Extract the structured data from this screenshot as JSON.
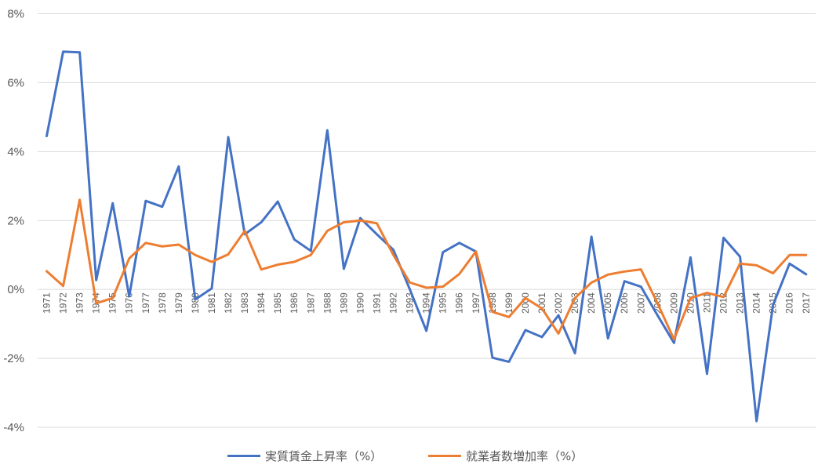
{
  "chart_data": {
    "type": "line",
    "x": [
      "1971",
      "1972",
      "1973",
      "1974",
      "1975",
      "1976",
      "1977",
      "1978",
      "1979",
      "1980",
      "1981",
      "1982",
      "1983",
      "1984",
      "1985",
      "1986",
      "1987",
      "1988",
      "1989",
      "1990",
      "1991",
      "1992",
      "1993",
      "1994",
      "1995",
      "1996",
      "1997",
      "1998",
      "1999",
      "2000",
      "2001",
      "2002",
      "2003",
      "2004",
      "2005",
      "2006",
      "2007",
      "2008",
      "2009",
      "2010",
      "2011",
      "2012",
      "2013",
      "2014",
      "2015",
      "2016",
      "2017"
    ],
    "ylim": [
      -4,
      8
    ],
    "yticks": [
      -4,
      -2,
      0,
      2,
      4,
      6,
      8
    ],
    "ytick_labels": [
      "-4%",
      "-2%",
      "0%",
      "2%",
      "4%",
      "6%",
      "8%"
    ],
    "grid": true,
    "legend_position": "bottom",
    "series": [
      {
        "name": "実質賃金上昇率（%）",
        "color": "#4472c4",
        "values": [
          4.45,
          6.9,
          6.88,
          0.27,
          2.5,
          -0.2,
          2.57,
          2.4,
          3.57,
          -0.29,
          0.03,
          4.42,
          1.6,
          1.95,
          2.55,
          1.45,
          1.12,
          4.62,
          0.6,
          2.07,
          1.6,
          1.15,
          0.0,
          -1.2,
          1.08,
          1.35,
          1.1,
          -1.98,
          -2.1,
          -1.18,
          -1.38,
          -0.75,
          -1.85,
          1.53,
          -1.42,
          0.24,
          0.08,
          -0.75,
          -1.55,
          0.93,
          -2.45,
          1.5,
          0.95,
          -3.82,
          -0.45,
          0.75,
          0.44
        ]
      },
      {
        "name": "就業者数増加率（%）",
        "color": "#ed7d31",
        "values": [
          0.53,
          0.1,
          2.6,
          -0.4,
          -0.25,
          0.9,
          1.35,
          1.25,
          1.3,
          1.0,
          0.8,
          1.02,
          1.7,
          0.58,
          0.72,
          0.8,
          1.0,
          1.7,
          1.95,
          2.0,
          1.92,
          1.0,
          0.2,
          0.05,
          0.08,
          0.45,
          1.1,
          -0.65,
          -0.8,
          -0.25,
          -0.55,
          -1.28,
          -0.25,
          0.2,
          0.43,
          0.52,
          0.58,
          -0.4,
          -1.45,
          -0.25,
          -0.1,
          -0.22,
          0.75,
          0.7,
          0.47,
          1.0,
          1.0
        ]
      }
    ]
  }
}
